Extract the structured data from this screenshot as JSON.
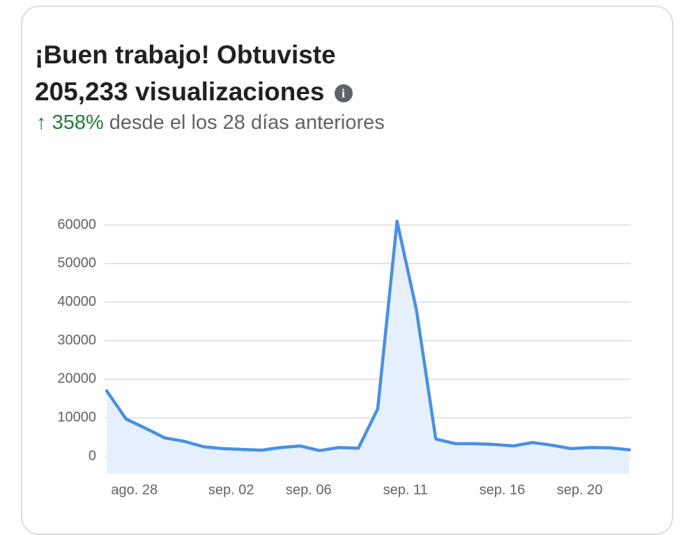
{
  "header": {
    "title": "¡Buen trabajo! Obtuviste 205,233 visualizaciones",
    "change": "358%",
    "change_text": "desde el los 28 días anteriores"
  },
  "chart_data": {
    "type": "line",
    "categories": [
      null,
      "ago. 28",
      null,
      null,
      null,
      null,
      "sep. 02",
      null,
      null,
      null,
      "sep. 06",
      null,
      null,
      null,
      null,
      "sep. 11",
      null,
      null,
      null,
      null,
      "sep. 16",
      null,
      null,
      null,
      "sep. 20",
      null,
      null,
      null
    ],
    "values": [
      17000,
      9700,
      7300,
      4800,
      3900,
      2500,
      2000,
      1800,
      1600,
      2300,
      2700,
      1500,
      2300,
      2100,
      12300,
      61000,
      38000,
      4500,
      3300,
      3300,
      3100,
      2700,
      3600,
      2900,
      2000,
      2300,
      2200,
      1700
    ],
    "color": "#4a90e2",
    "fill_color": "#e6f0fc",
    "ylim": [
      -4500,
      62000
    ],
    "yticks": [
      0,
      10000,
      20000,
      30000,
      40000,
      50000,
      60000
    ],
    "grid": true
  }
}
